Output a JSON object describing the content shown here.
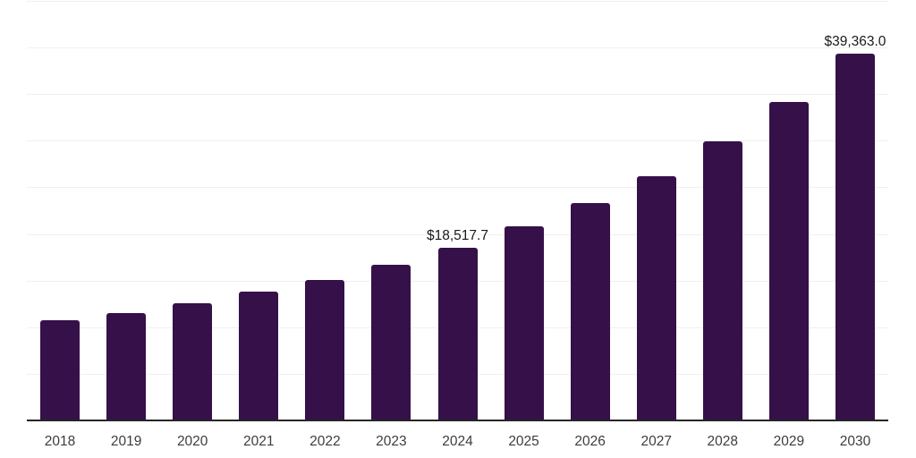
{
  "chart_data": {
    "type": "bar",
    "title": "",
    "xlabel": "",
    "ylabel": "",
    "categories": [
      "2018",
      "2019",
      "2020",
      "2021",
      "2022",
      "2023",
      "2024",
      "2025",
      "2026",
      "2027",
      "2028",
      "2029",
      "2030"
    ],
    "values": [
      10700,
      11500,
      12600,
      13800,
      15100,
      16700,
      18517.7,
      20800,
      23300,
      26200,
      29900,
      34200,
      39363.0
    ],
    "labeled_points": [
      {
        "category": "2024",
        "label": "$18,517.7"
      },
      {
        "category": "2030",
        "label": "$39,363.0"
      }
    ],
    "ylim": [
      0,
      45000
    ],
    "gridline_interval": 5000,
    "grid": true,
    "legend": false,
    "y_axis_labels_visible": false,
    "colors": {
      "bar": "#351049",
      "gridline": "#f0f0f1",
      "axis": "#262626",
      "tick_label": "#3d3d3d",
      "value_label": "#1a1a1a",
      "background": "#ffffff"
    }
  }
}
